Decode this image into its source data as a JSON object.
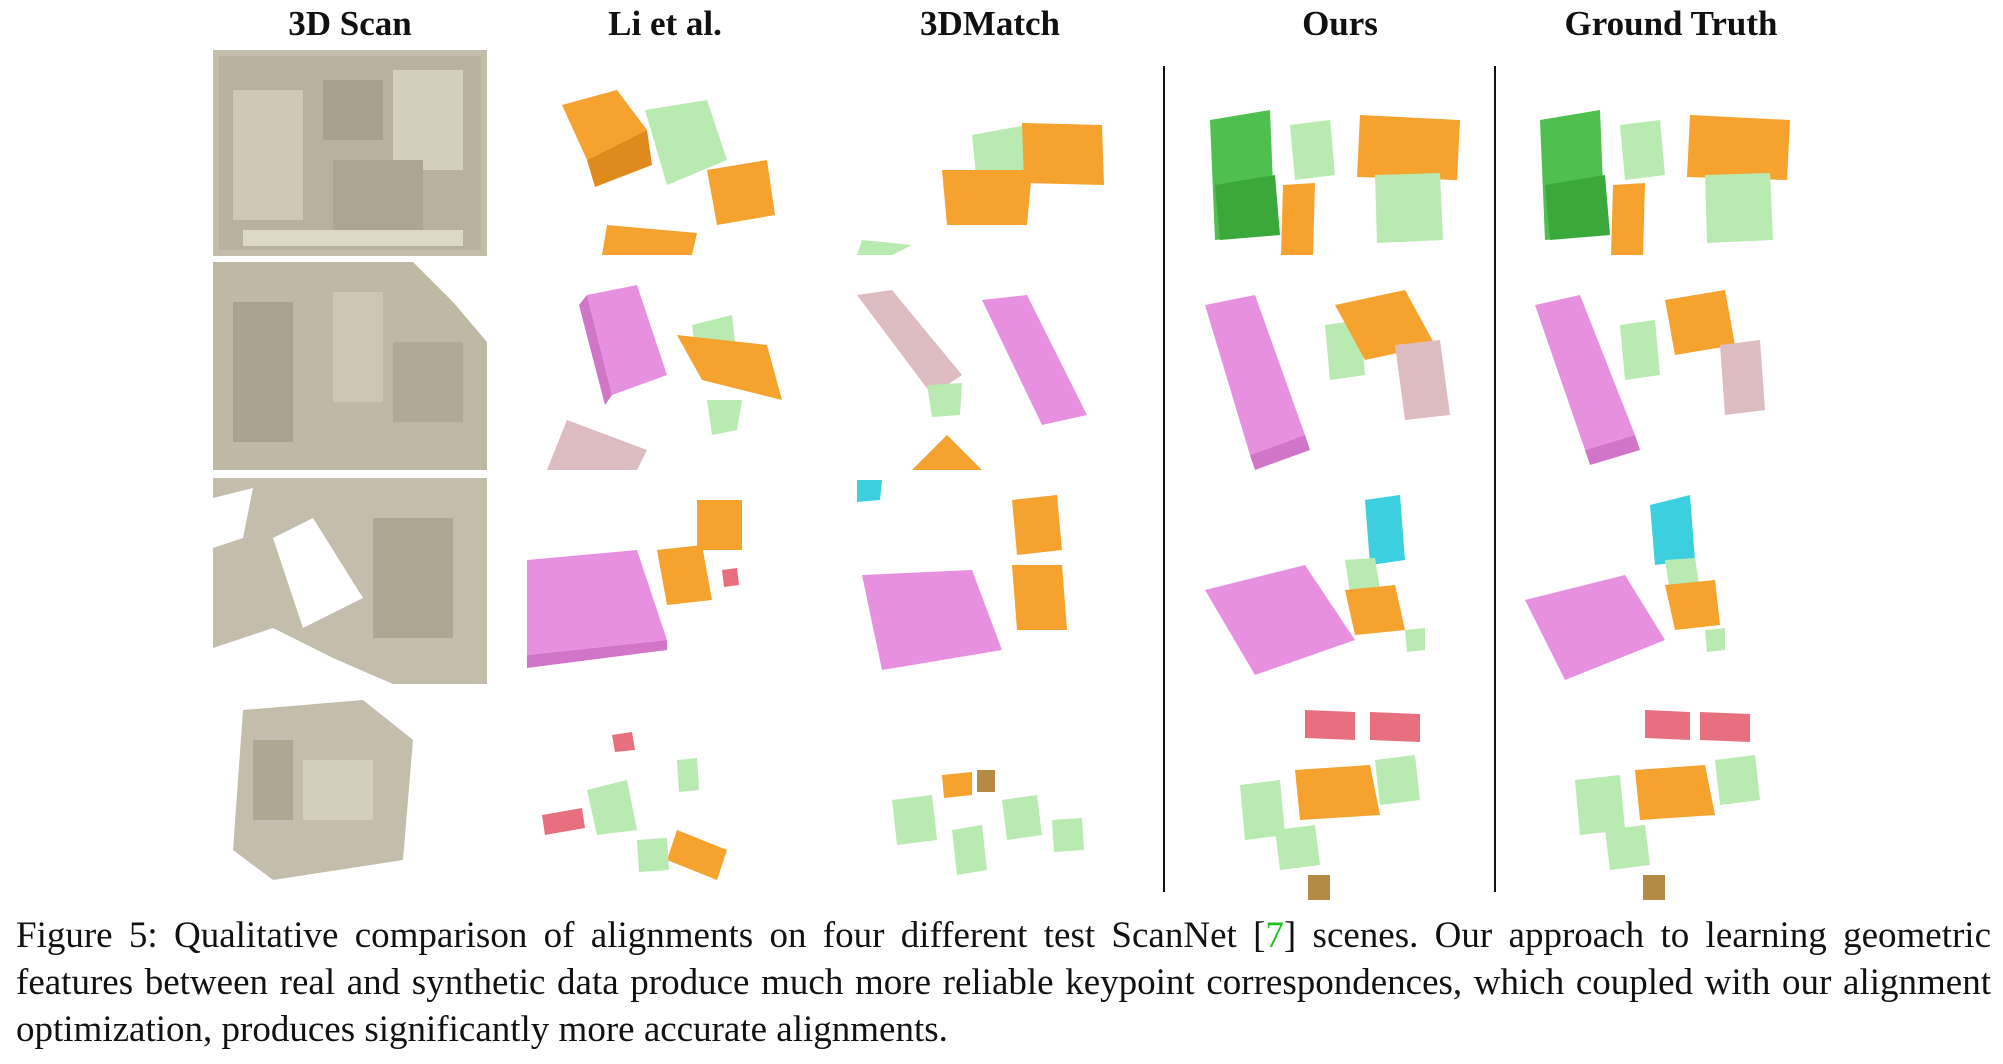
{
  "columns": [
    {
      "id": "scan",
      "title": "3D Scan"
    },
    {
      "id": "li",
      "title": "Li et al."
    },
    {
      "id": "match",
      "title": "3DMatch"
    },
    {
      "id": "ours",
      "title": "Ours"
    },
    {
      "id": "gt",
      "title": "Ground Truth"
    }
  ],
  "colors": {
    "scan": "#bdb6a4",
    "table": "#f5a22e",
    "chair": "#b8eab2",
    "sofa": "#4fbf4f",
    "bed": "#e890e0",
    "shelf": "#dcbcc0",
    "monitor": "#3ccfe0",
    "picture": "#e8707e",
    "plant_pot": "#b58a45"
  },
  "caption": {
    "prefix": "Figure 5: Qualitative comparison of alignments on four different test ScanNet [",
    "cite": "7",
    "suffix": "] scenes. Our approach to learning geometric features between real and synthetic data produce much more reliable keypoint correspondences, which coupled with our alignment optimization, produces significantly more accurate alignments."
  }
}
